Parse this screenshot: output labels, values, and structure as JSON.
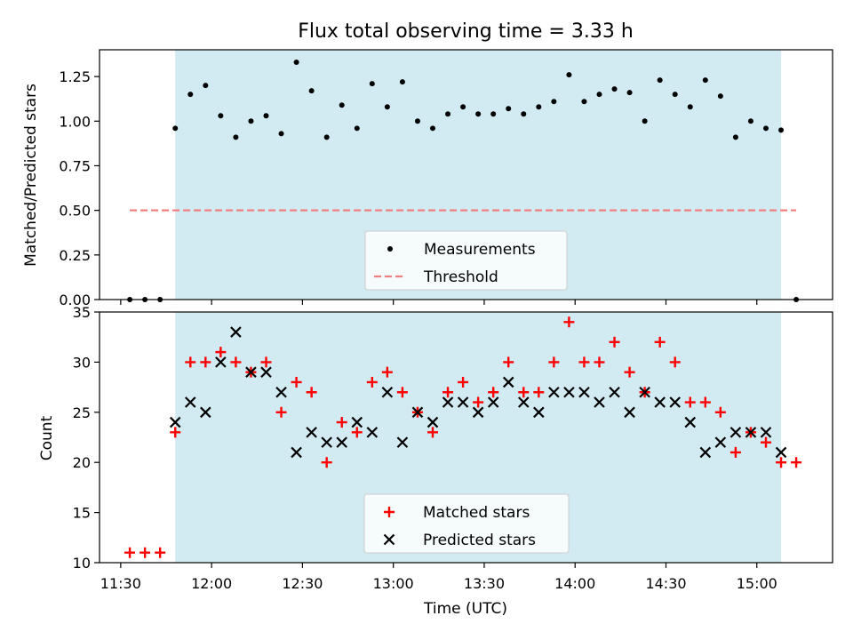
{
  "figure": {
    "title": "Flux total observing time = 3.33 h",
    "xlabel": "Time (UTC)"
  },
  "chart_data": [
    {
      "type": "scatter",
      "panel": "top",
      "ylabel": "Matched/Predicted stars",
      "xlim": [
        "11:23",
        "15:25"
      ],
      "ylim": [
        0,
        1.4
      ],
      "yticks": [
        "0.00",
        "0.25",
        "0.50",
        "0.75",
        "1.00",
        "1.25"
      ],
      "shaded_span": [
        "11:48",
        "15:08"
      ],
      "shade_color": "#add8e6",
      "legend_position": "lower center",
      "grid": false,
      "series": [
        {
          "name": "Measurements",
          "marker": "dot",
          "color": "#000000",
          "x": [
            "11:33",
            "11:38",
            "11:43",
            "11:48",
            "11:53",
            "11:58",
            "12:03",
            "12:08",
            "12:13",
            "12:18",
            "12:23",
            "12:28",
            "12:33",
            "12:38",
            "12:43",
            "12:48",
            "12:53",
            "12:58",
            "13:03",
            "13:08",
            "13:13",
            "13:18",
            "13:23",
            "13:28",
            "13:33",
            "13:38",
            "13:43",
            "13:48",
            "13:53",
            "13:58",
            "14:03",
            "14:08",
            "14:13",
            "14:18",
            "14:23",
            "14:28",
            "14:33",
            "14:38",
            "14:43",
            "14:48",
            "14:53",
            "14:58",
            "15:03",
            "15:08",
            "15:13"
          ],
          "y": [
            0,
            0,
            0,
            0.96,
            1.15,
            1.2,
            1.03,
            0.91,
            1.0,
            1.03,
            0.93,
            1.33,
            1.17,
            0.91,
            1.09,
            0.96,
            1.21,
            1.08,
            1.22,
            1.0,
            0.96,
            1.04,
            1.08,
            1.04,
            1.04,
            1.07,
            1.04,
            1.08,
            1.11,
            1.26,
            1.11,
            1.15,
            1.18,
            1.16,
            1.0,
            1.23,
            1.15,
            1.08,
            1.23,
            1.14,
            0.91,
            1.0,
            0.96,
            0.95,
            0
          ]
        },
        {
          "name": "Threshold",
          "style": "dashed",
          "color": "#f08080",
          "x": [
            "11:33",
            "15:13"
          ],
          "y": [
            0.5,
            0.5
          ]
        }
      ]
    },
    {
      "type": "scatter",
      "panel": "bottom",
      "ylabel": "Count",
      "xlim": [
        "11:23",
        "15:25"
      ],
      "ylim": [
        10,
        35
      ],
      "yticks": [
        "10",
        "15",
        "20",
        "25",
        "30",
        "35"
      ],
      "xticks": [
        "11:30",
        "12:00",
        "12:30",
        "13:00",
        "13:30",
        "14:00",
        "14:30",
        "15:00"
      ],
      "shaded_span": [
        "11:48",
        "15:08"
      ],
      "shade_color": "#add8e6",
      "legend_position": "lower center",
      "grid": false,
      "series": [
        {
          "name": "Matched stars",
          "marker": "plus",
          "color": "#ff0000",
          "x": [
            "11:33",
            "11:38",
            "11:43",
            "11:48",
            "11:53",
            "11:58",
            "12:03",
            "12:08",
            "12:13",
            "12:18",
            "12:23",
            "12:28",
            "12:33",
            "12:38",
            "12:43",
            "12:48",
            "12:53",
            "12:58",
            "13:03",
            "13:08",
            "13:13",
            "13:18",
            "13:23",
            "13:28",
            "13:33",
            "13:38",
            "13:43",
            "13:48",
            "13:53",
            "13:58",
            "14:03",
            "14:08",
            "14:13",
            "14:18",
            "14:23",
            "14:28",
            "14:33",
            "14:38",
            "14:43",
            "14:48",
            "14:53",
            "14:58",
            "15:03",
            "15:08",
            "15:13"
          ],
          "y": [
            11,
            11,
            11,
            23,
            30,
            30,
            31,
            30,
            29,
            30,
            25,
            28,
            27,
            20,
            24,
            23,
            28,
            29,
            27,
            25,
            23,
            27,
            28,
            26,
            27,
            30,
            27,
            27,
            30,
            34,
            30,
            30,
            32,
            29,
            27,
            32,
            30,
            26,
            26,
            25,
            21,
            23,
            22,
            20,
            20
          ]
        },
        {
          "name": "Predicted stars",
          "marker": "x",
          "color": "#000000",
          "x": [
            "11:48",
            "11:53",
            "11:58",
            "12:03",
            "12:08",
            "12:13",
            "12:18",
            "12:23",
            "12:28",
            "12:33",
            "12:38",
            "12:43",
            "12:48",
            "12:53",
            "12:58",
            "13:03",
            "13:08",
            "13:13",
            "13:18",
            "13:23",
            "13:28",
            "13:33",
            "13:38",
            "13:43",
            "13:48",
            "13:53",
            "13:58",
            "14:03",
            "14:08",
            "14:13",
            "14:18",
            "14:23",
            "14:28",
            "14:33",
            "14:38",
            "14:43",
            "14:48",
            "14:53",
            "14:58",
            "15:03",
            "15:08"
          ],
          "y": [
            24,
            26,
            25,
            30,
            33,
            29,
            29,
            27,
            21,
            23,
            22,
            22,
            24,
            23,
            27,
            22,
            25,
            24,
            26,
            26,
            25,
            26,
            28,
            26,
            25,
            27,
            27,
            27,
            26,
            27,
            25,
            27,
            26,
            26,
            24,
            21,
            22,
            23,
            23,
            23,
            21
          ]
        }
      ]
    }
  ]
}
